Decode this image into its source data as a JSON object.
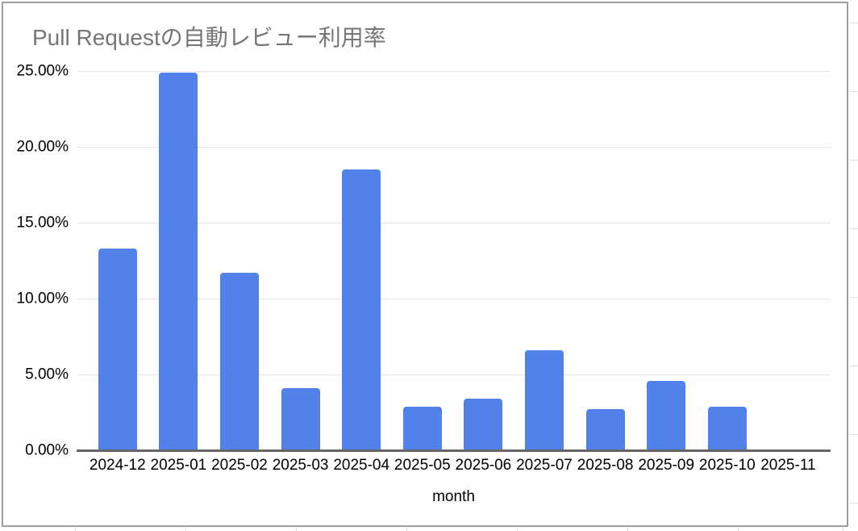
{
  "chart_data": {
    "type": "bar",
    "title": "Pull Requestの自動レビュー利用率",
    "xlabel": "month",
    "ylabel": "",
    "categories": [
      "2024-12",
      "2025-01",
      "2025-02",
      "2025-03",
      "2025-04",
      "2025-05",
      "2025-06",
      "2025-07",
      "2025-08",
      "2025-09",
      "2025-10",
      "2025-11"
    ],
    "values": [
      13.3,
      24.9,
      11.7,
      4.1,
      18.5,
      2.85,
      3.4,
      6.6,
      2.7,
      4.6,
      2.85,
      0
    ],
    "y_tick_labels": [
      "25.00%",
      "20.00%",
      "15.00%",
      "10.00%",
      "5.00%",
      "0.00%"
    ],
    "ylim": [
      0,
      25
    ],
    "grid": true,
    "legend": false,
    "colors": {
      "bar": "#5282e9",
      "title_text": "#767676",
      "tick_text": "#000000",
      "gridline": "#e6e6e6",
      "axis_line": "#666666",
      "frame_border": "#9e9e9e",
      "background": "#ffffff"
    }
  }
}
